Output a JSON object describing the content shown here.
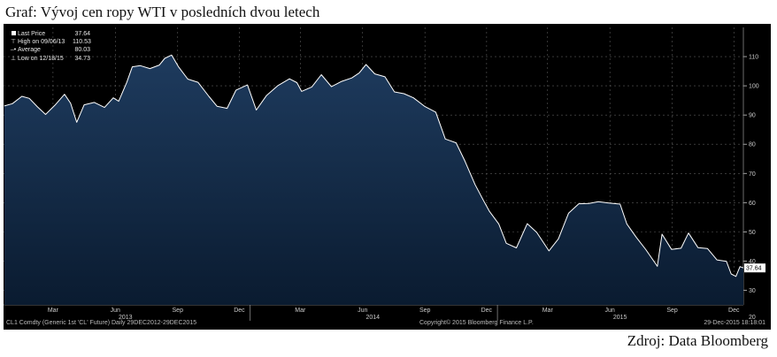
{
  "page": {
    "title": "Graf: Vývoj cen ropy WTI v posledních dvou letech",
    "source": "Zdroj: Data Bloomberg"
  },
  "legend": {
    "last_price_label": "Last Price",
    "last_price_value": "37.64",
    "high_label": "High on 09/06/13",
    "high_value": "110.53",
    "average_label": "Average",
    "average_value": "80.03",
    "low_label": "Low on 12/18/15",
    "low_value": "34.73"
  },
  "footer": {
    "left": "CL1 Comdty (Generic 1st 'CL' Future)  Daily 29DEC2012-29DEC2015",
    "middle": "Copyright© 2015 Bloomberg Finance L.P.",
    "right": "29-Dec-2015 18:18:01"
  },
  "colors": {
    "background": "#000000",
    "fill_top": "#1e3b5e",
    "fill_bottom": "#0a1b30",
    "line": "#ffffff",
    "grid": "#5a5a5a",
    "last_price_tag": "#ffffff"
  },
  "chart_data": {
    "type": "area",
    "title": "",
    "ylim": [
      25,
      120
    ],
    "y_ticks": [
      30,
      40,
      50,
      60,
      70,
      80,
      90,
      100,
      110
    ],
    "x_start": "2013-01-01",
    "x_end": "2015-12-29",
    "month_ticks": [
      {
        "label": "Mar",
        "date": "2013-03-15"
      },
      {
        "label": "Jun",
        "date": "2013-06-15"
      },
      {
        "label": "Sep",
        "date": "2013-09-15"
      },
      {
        "label": "Dec",
        "date": "2013-12-15"
      },
      {
        "label": "Mar",
        "date": "2014-03-15"
      },
      {
        "label": "Jun",
        "date": "2014-06-15"
      },
      {
        "label": "Sep",
        "date": "2014-09-15"
      },
      {
        "label": "Dec",
        "date": "2014-12-15"
      },
      {
        "label": "Mar",
        "date": "2015-03-15"
      },
      {
        "label": "Jun",
        "date": "2015-06-15"
      },
      {
        "label": "Sep",
        "date": "2015-09-15"
      },
      {
        "label": "Dec",
        "date": "2015-12-15"
      }
    ],
    "year_labels": [
      {
        "label": "2013",
        "date": "2013-06-30"
      },
      {
        "label": "2014",
        "date": "2014-06-30"
      },
      {
        "label": "2015",
        "date": "2015-06-30"
      }
    ],
    "year_dividers": [
      "2013-12-31",
      "2014-12-31"
    ],
    "right_edge_label": "20",
    "series": [
      {
        "points": [
          [
            "2013-01-02",
            93.1
          ],
          [
            "2013-01-14",
            93.9
          ],
          [
            "2013-01-28",
            96.4
          ],
          [
            "2013-02-08",
            95.7
          ],
          [
            "2013-02-20",
            92.8
          ],
          [
            "2013-03-04",
            90.2
          ],
          [
            "2013-03-18",
            93.4
          ],
          [
            "2013-04-01",
            97.1
          ],
          [
            "2013-04-10",
            94.0
          ],
          [
            "2013-04-19",
            87.5
          ],
          [
            "2013-04-30",
            93.5
          ],
          [
            "2013-05-15",
            94.3
          ],
          [
            "2013-05-30",
            92.6
          ],
          [
            "2013-06-12",
            95.9
          ],
          [
            "2013-06-20",
            94.7
          ],
          [
            "2013-07-02",
            101.2
          ],
          [
            "2013-07-10",
            106.5
          ],
          [
            "2013-07-22",
            106.9
          ],
          [
            "2013-08-05",
            105.9
          ],
          [
            "2013-08-19",
            107.1
          ],
          [
            "2013-08-27",
            109.4
          ],
          [
            "2013-09-06",
            110.53
          ],
          [
            "2013-09-16",
            106.6
          ],
          [
            "2013-09-30",
            102.3
          ],
          [
            "2013-10-15",
            101.2
          ],
          [
            "2013-10-31",
            96.4
          ],
          [
            "2013-11-12",
            93.0
          ],
          [
            "2013-11-27",
            92.3
          ],
          [
            "2013-12-10",
            98.5
          ],
          [
            "2013-12-27",
            100.3
          ],
          [
            "2014-01-09",
            91.7
          ],
          [
            "2014-01-24",
            96.6
          ],
          [
            "2014-02-10",
            100.1
          ],
          [
            "2014-02-27",
            102.4
          ],
          [
            "2014-03-10",
            101.1
          ],
          [
            "2014-03-17",
            98.1
          ],
          [
            "2014-04-01",
            99.6
          ],
          [
            "2014-04-15",
            103.8
          ],
          [
            "2014-04-30",
            99.7
          ],
          [
            "2014-05-15",
            101.5
          ],
          [
            "2014-05-30",
            102.7
          ],
          [
            "2014-06-10",
            104.4
          ],
          [
            "2014-06-20",
            107.3
          ],
          [
            "2014-07-03",
            104.1
          ],
          [
            "2014-07-18",
            103.1
          ],
          [
            "2014-08-01",
            97.9
          ],
          [
            "2014-08-15",
            97.3
          ],
          [
            "2014-08-29",
            95.9
          ],
          [
            "2014-09-15",
            92.9
          ],
          [
            "2014-10-01",
            91.0
          ],
          [
            "2014-10-15",
            81.8
          ],
          [
            "2014-10-31",
            80.5
          ],
          [
            "2014-11-13",
            74.2
          ],
          [
            "2014-11-28",
            66.2
          ],
          [
            "2014-12-10",
            60.9
          ],
          [
            "2014-12-19",
            57.1
          ],
          [
            "2015-01-02",
            52.7
          ],
          [
            "2015-01-13",
            46.1
          ],
          [
            "2015-01-28",
            44.5
          ],
          [
            "2015-02-13",
            52.8
          ],
          [
            "2015-02-27",
            49.8
          ],
          [
            "2015-03-17",
            43.5
          ],
          [
            "2015-03-31",
            47.6
          ],
          [
            "2015-04-15",
            56.4
          ],
          [
            "2015-04-30",
            59.6
          ],
          [
            "2015-05-15",
            59.7
          ],
          [
            "2015-05-29",
            60.3
          ],
          [
            "2015-06-12",
            59.9
          ],
          [
            "2015-06-30",
            59.5
          ],
          [
            "2015-07-10",
            52.7
          ],
          [
            "2015-07-24",
            48.1
          ],
          [
            "2015-08-07",
            43.9
          ],
          [
            "2015-08-24",
            38.2
          ],
          [
            "2015-08-31",
            49.2
          ],
          [
            "2015-09-14",
            44.0
          ],
          [
            "2015-09-28",
            44.4
          ],
          [
            "2015-10-09",
            49.6
          ],
          [
            "2015-10-23",
            44.6
          ],
          [
            "2015-11-06",
            44.3
          ],
          [
            "2015-11-20",
            40.4
          ],
          [
            "2015-12-04",
            39.9
          ],
          [
            "2015-12-11",
            35.6
          ],
          [
            "2015-12-18",
            34.73
          ],
          [
            "2015-12-24",
            38.1
          ],
          [
            "2015-12-29",
            37.64
          ]
        ]
      }
    ]
  }
}
